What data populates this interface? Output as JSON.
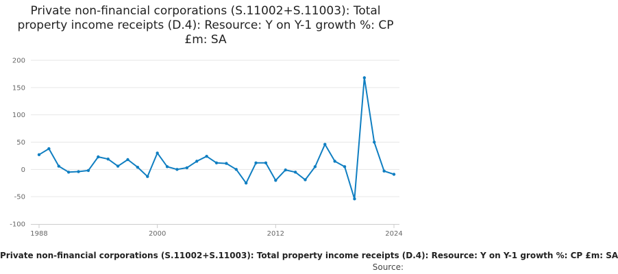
{
  "chart_data": {
    "type": "line",
    "title": "Private non-financial corporations (S.11002+S.11003): Total property income receipts (D.4): Resource: Y on Y-1 growth %: CP £m: SA",
    "x": [
      1988,
      1989,
      1990,
      1991,
      1992,
      1993,
      1994,
      1995,
      1996,
      1997,
      1998,
      1999,
      2000,
      2001,
      2002,
      2003,
      2004,
      2005,
      2006,
      2007,
      2008,
      2009,
      2010,
      2011,
      2012,
      2013,
      2014,
      2015,
      2016,
      2017,
      2018,
      2019,
      2020,
      2021,
      2022,
      2023,
      2024
    ],
    "series": [
      {
        "name": "Private non-financial corporations (S.11002+S.11003): Total property income receipts (D.4): Resource: Y on Y-1 growth %: CP £m: SA",
        "values": [
          27,
          38,
          6,
          -5,
          -4,
          -2,
          23,
          19,
          6,
          18,
          4,
          -13,
          30,
          5,
          0,
          3,
          15,
          24,
          12,
          11,
          0,
          -25,
          12,
          12,
          -20,
          -1,
          -5,
          -19,
          5,
          46,
          15,
          5,
          -54,
          168,
          50,
          -3,
          -9
        ]
      }
    ],
    "ylim": [
      -100,
      200
    ],
    "yticks": [
      -100,
      -50,
      0,
      50,
      100,
      150,
      200
    ],
    "xticks": [
      1988,
      2000,
      2012,
      2024
    ],
    "xlim": [
      1988,
      2024
    ],
    "line_color": "#0f7ec1",
    "grid": true,
    "legend": "bottom",
    "source_label": "Source:"
  }
}
